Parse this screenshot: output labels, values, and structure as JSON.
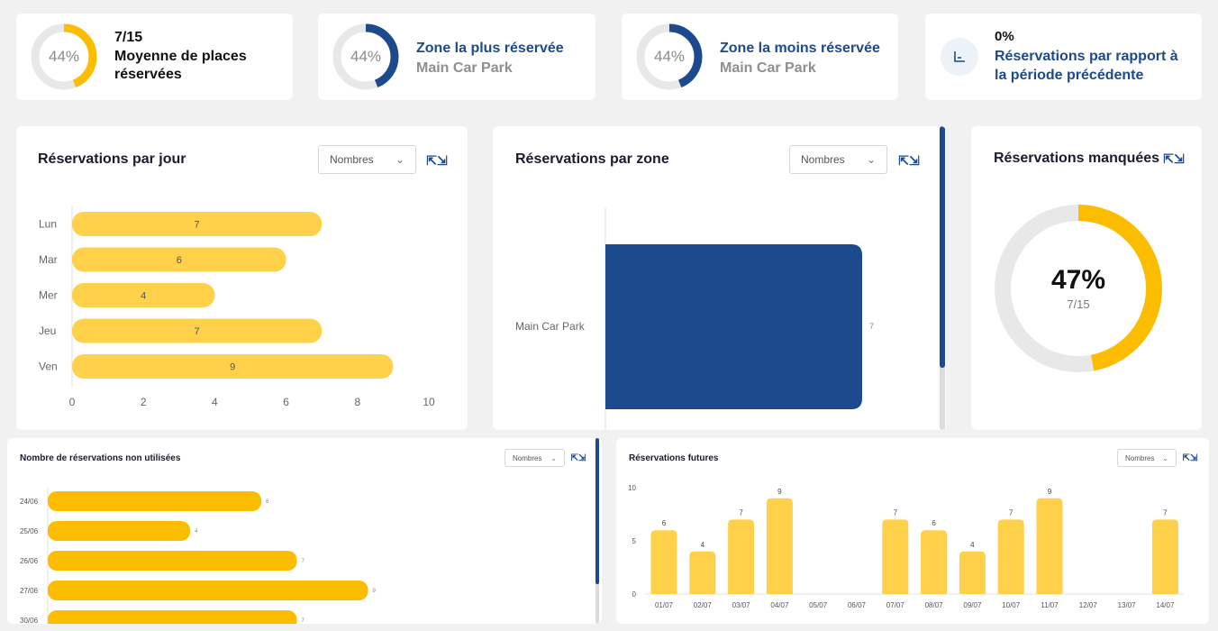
{
  "colors": {
    "yellow": "#ffd04a",
    "yellow_strong": "#fcbd00",
    "navy": "#1d4a8c",
    "ring_gray": "#e8e8e8"
  },
  "kpis": [
    {
      "percent": "44%",
      "ring_fraction": 0.44,
      "ring_color": "#fcbd00",
      "value": "7/15",
      "label_line1": "Moyenne de places",
      "label_line2": "réservées"
    },
    {
      "percent": "44%",
      "ring_fraction": 0.44,
      "ring_color": "#1d4a8c",
      "title": "Zone la plus réservée",
      "subtitle": "Main Car Park"
    },
    {
      "percent": "44%",
      "ring_fraction": 0.44,
      "ring_color": "#1d4a8c",
      "title": "Zone la moins réservée",
      "subtitle": "Main Car Park"
    },
    {
      "icon": "chart-axis-icon",
      "value": "0%",
      "label_line1": "Réservations par rapport à",
      "label_line2": "la période précédente"
    }
  ],
  "select_label": "Nombres",
  "chart_data": [
    {
      "type": "bar",
      "orientation": "horizontal",
      "title": "Réservations par jour",
      "categories": [
        "Lun",
        "Mar",
        "Mer",
        "Jeu",
        "Ven"
      ],
      "values": [
        7,
        6,
        4,
        7,
        9
      ],
      "xlim": [
        0,
        10
      ],
      "x_ticks": [
        "0",
        "2",
        "4",
        "6",
        "8",
        "10"
      ]
    },
    {
      "type": "bar",
      "orientation": "horizontal",
      "title": "Réservations par zone",
      "categories": [
        "Main Car Park"
      ],
      "values": [
        7
      ]
    },
    {
      "type": "pie",
      "title": "Réservations manquées",
      "center_value": "47%",
      "center_sub": "7/15",
      "fraction": 0.47
    },
    {
      "type": "bar",
      "orientation": "horizontal",
      "title": "Nombre de réservations non utilisées",
      "categories": [
        "24/06",
        "25/06",
        "26/06",
        "27/06",
        "30/06"
      ],
      "values": [
        6,
        4,
        7,
        9,
        7
      ]
    },
    {
      "type": "bar",
      "title": "Réservations futures",
      "categories": [
        "01/07",
        "02/07",
        "03/07",
        "04/07",
        "05/07",
        "06/07",
        "07/07",
        "08/07",
        "09/07",
        "10/07",
        "11/07",
        "12/07",
        "13/07",
        "14/07"
      ],
      "values": [
        6,
        4,
        7,
        9,
        0,
        0,
        7,
        6,
        4,
        7,
        9,
        0,
        0,
        7
      ],
      "ylim": [
        0,
        10
      ],
      "y_ticks": [
        "0",
        "5",
        "10"
      ]
    }
  ]
}
